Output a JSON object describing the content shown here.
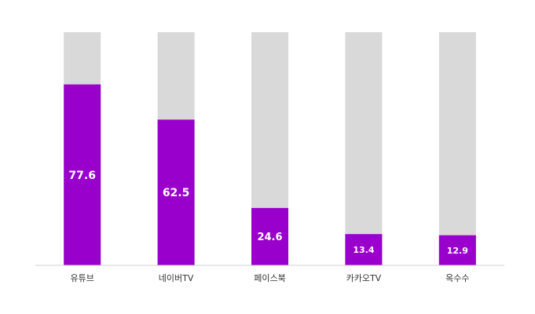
{
  "chart_data": {
    "type": "bar",
    "categories": [
      "유튜브",
      "네이버TV",
      "페이스북",
      "카카오TV",
      "옥수수"
    ],
    "values": [
      77.6,
      62.5,
      24.6,
      13.4,
      12.9
    ],
    "color": "#9900cc",
    "track_color": "#d9d9d9",
    "ylim": [
      0,
      100
    ],
    "grid": false
  }
}
